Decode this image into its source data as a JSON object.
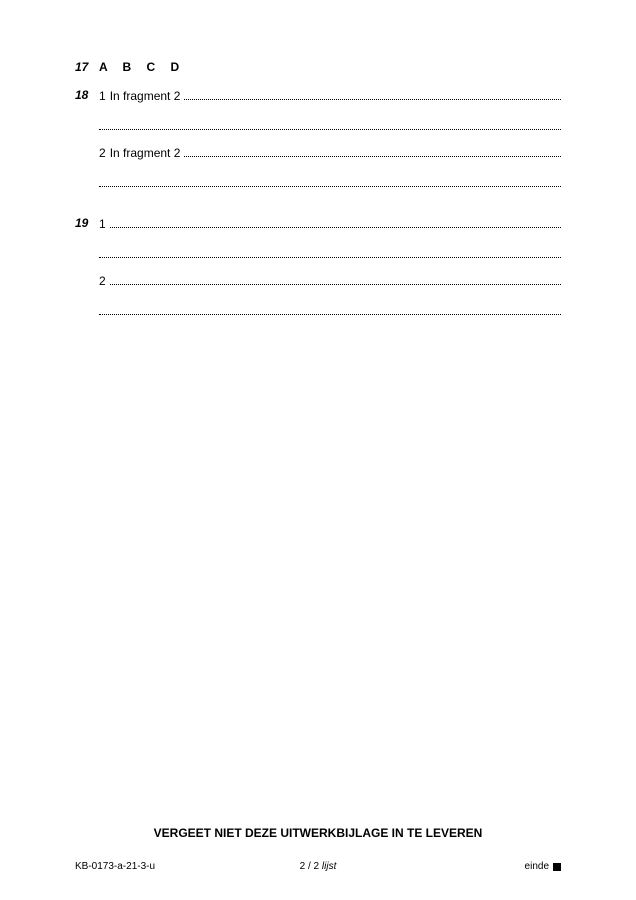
{
  "questions": [
    {
      "number": "17",
      "type": "mc",
      "options": "A  B  C  D"
    },
    {
      "number": "18",
      "type": "open",
      "items": [
        {
          "index": "1",
          "prefix": "In fragment 2 "
        },
        {
          "index": "2",
          "prefix": "In fragment 2 "
        }
      ]
    },
    {
      "number": "19",
      "type": "open",
      "items": [
        {
          "index": "1",
          "prefix": ""
        },
        {
          "index": "2",
          "prefix": ""
        }
      ]
    }
  ],
  "reminder": "VERGEET NIET DEZE UITWERKBIJLAGE IN TE LEVEREN",
  "footer": {
    "left": "KB-0173-a-21-3-u",
    "center": "2 / 2",
    "page_label": "lijst",
    "end": "einde"
  },
  "colors": {
    "text": "#000000",
    "bg": "#ffffff",
    "dotted": "#000000"
  },
  "fonts": {
    "base_size": 11,
    "qnum_size": 12,
    "bold_weight": 700
  }
}
